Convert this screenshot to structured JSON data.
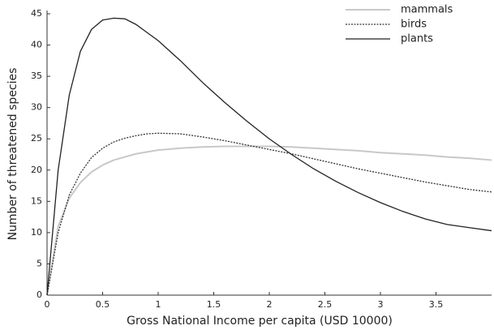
{
  "chart_data": {
    "type": "line",
    "x_label": "Gross National Income per capita (USD 10000)",
    "y_label": "Number of threatened species",
    "x": [
      0,
      0.1,
      0.2,
      0.3,
      0.4,
      0.5,
      0.6,
      0.7,
      0.8,
      0.9,
      1.0,
      1.2,
      1.4,
      1.6,
      1.8,
      2.0,
      2.2,
      2.4,
      2.6,
      2.8,
      3.0,
      3.2,
      3.4,
      3.6,
      3.8,
      4.0
    ],
    "series": [
      {
        "name": "mammals",
        "color": "#c8c8c8",
        "dash": "solid",
        "values": [
          0,
          11,
          15.5,
          18,
          19.7,
          20.8,
          21.6,
          22.1,
          22.6,
          22.9,
          23.2,
          23.5,
          23.7,
          23.8,
          23.8,
          23.8,
          23.7,
          23.5,
          23.3,
          23.1,
          22.8,
          22.6,
          22.4,
          22.1,
          21.9,
          21.6
        ]
      },
      {
        "name": "birds",
        "color": "#333333",
        "dash": "dotted",
        "values": [
          0,
          10,
          16,
          19.5,
          22,
          23.5,
          24.5,
          25.1,
          25.5,
          25.8,
          25.9,
          25.8,
          25.3,
          24.7,
          24,
          23.3,
          22.6,
          21.8,
          21,
          20.2,
          19.5,
          18.8,
          18.1,
          17.5,
          16.9,
          16.5
        ]
      },
      {
        "name": "plants",
        "color": "#222222",
        "dash": "solid",
        "values": [
          0,
          20,
          32,
          39,
          42.5,
          44,
          44.3,
          44.2,
          43.3,
          42,
          40.7,
          37.5,
          34,
          30.8,
          27.8,
          25,
          22.5,
          20.2,
          18.2,
          16.4,
          14.8,
          13.4,
          12.2,
          11.3,
          10.8,
          10.3
        ]
      }
    ],
    "xlim": [
      0,
      4
    ],
    "ylim": [
      0,
      45
    ],
    "xticks": [
      0,
      0.5,
      1,
      1.5,
      2,
      2.5,
      3,
      3.5
    ],
    "yticks": [
      0,
      5,
      10,
      15,
      20,
      25,
      30,
      35,
      40,
      45
    ],
    "legend": "upper right"
  }
}
